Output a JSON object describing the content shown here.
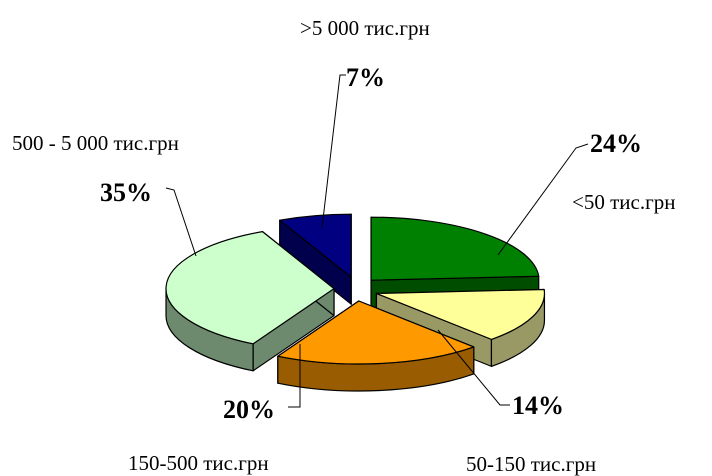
{
  "chart_data": {
    "type": "pie",
    "variant": "3d-exploded",
    "categories": [
      "<50 тис.грн",
      "50-150 тис.грн",
      "150-500 тис.грн",
      "500 - 5 000 тис.грн",
      ">5 000 тис.грн"
    ],
    "values": [
      24,
      14,
      20,
      35,
      7
    ],
    "value_labels": [
      "24%",
      "14%",
      "20%",
      "35%",
      "7%"
    ],
    "colors": {
      "top": [
        "#008000",
        "#ffff99",
        "#ff9900",
        "#ccffcc",
        "#000080"
      ],
      "side": [
        "#004d00",
        "#999966",
        "#995c00",
        "#6e8a6e",
        "#00004d"
      ]
    },
    "legend": "none"
  }
}
